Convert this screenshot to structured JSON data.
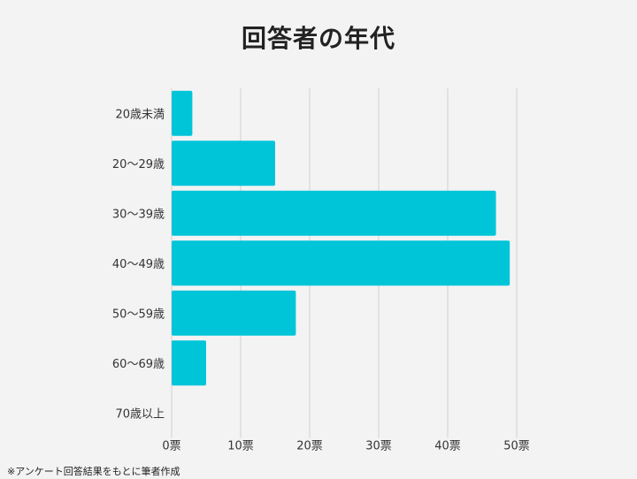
{
  "title": "回答者の年代",
  "footnote": "※アンケート回答結果をもとに筆者作成",
  "colors": {
    "bar": "#00c5d9",
    "grid": "#d0d0d0",
    "background": "#f3f3f3"
  },
  "chart_data": {
    "type": "bar",
    "orientation": "horizontal",
    "title": "回答者の年代",
    "xlabel": "",
    "ylabel": "",
    "categories": [
      "20歳未満",
      "20～29歳",
      "30～39歳",
      "40～49歳",
      "50～59歳",
      "60～69歳",
      "70歳以上"
    ],
    "values": [
      3,
      15,
      47,
      49,
      18,
      5,
      0
    ],
    "xlim": [
      0,
      50
    ],
    "x_ticks": [
      0,
      10,
      20,
      30,
      40,
      50
    ],
    "x_tick_labels": [
      "0票",
      "10票",
      "20票",
      "30票",
      "40票",
      "50票"
    ],
    "grid": true
  }
}
